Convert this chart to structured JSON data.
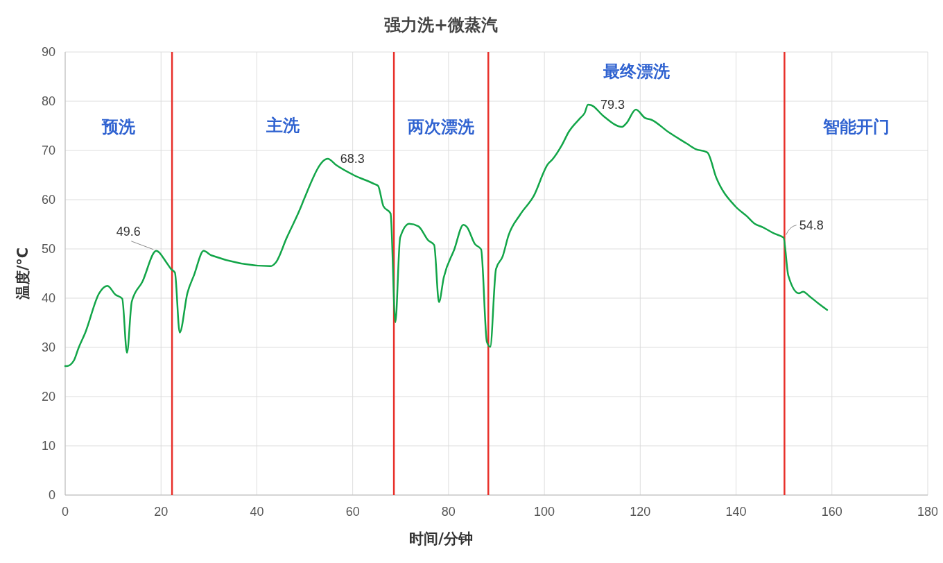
{
  "chart_data": {
    "type": "line",
    "title": "强力洗+微蒸汽",
    "xlabel": "时间/分钟",
    "ylabel": "温度/°C",
    "xlim": [
      0,
      180
    ],
    "xticks": [
      0,
      20,
      40,
      60,
      80,
      100,
      120,
      140,
      160,
      180
    ],
    "ylim": [
      0,
      90
    ],
    "yticks": [
      0,
      10,
      20,
      30,
      40,
      50,
      60,
      70,
      80,
      90
    ],
    "grid": true,
    "marker": "none",
    "line_style": "solid",
    "series": [
      {
        "color": "#12a548",
        "x": [
          0,
          0.4,
          1.8,
          2.8,
          4.2,
          7.1,
          8.8,
          10.5,
          11.9,
          12.9,
          13.9,
          16.1,
          19,
          21.1,
          22.1,
          22.9,
          23.9,
          25.5,
          26.9,
          28.9,
          30.5,
          42.8,
          44,
          46.2,
          49.1,
          49.8,
          54.8,
          56.6,
          60.2,
          64.5,
          65.3,
          66.4,
          67.9,
          68.9,
          69.9,
          71.8,
          73.7,
          75.8,
          77,
          78,
          79,
          81.2,
          83.1,
          83.8,
          85.5,
          86.8,
          88,
          88.7,
          89.9,
          91.3,
          92.5,
          94.9,
          97.8,
          100.7,
          101.7,
          103.6,
          105.1,
          107.5,
          108.4,
          109.1,
          109.8,
          112.3,
          116.2,
          117.1,
          119.1,
          121,
          122.4,
          125.8,
          129.7,
          131.5,
          134,
          135.9,
          139.8,
          142.3,
          143.9,
          145.6,
          148,
          149.9,
          150.9,
          153.1,
          154,
          155.3,
          157.2,
          159
        ],
        "values": [
          26.2,
          26.2,
          27.3,
          29.9,
          33,
          41,
          42.5,
          40.7,
          39.9,
          28.9,
          39.3,
          43.3,
          49.6,
          47.3,
          45.9,
          45.2,
          33,
          41,
          44.7,
          49.6,
          48.7,
          46.5,
          47.3,
          52.2,
          58.3,
          60,
          68.3,
          67,
          65,
          63.2,
          62.8,
          58.7,
          57.2,
          35.1,
          52.3,
          55.1,
          54.6,
          51.7,
          50.8,
          39.2,
          44.2,
          49.9,
          54.9,
          54.5,
          51,
          49.9,
          31.1,
          30.1,
          45.9,
          48.5,
          52.7,
          56.9,
          60.8,
          67.2,
          68.2,
          71,
          73.8,
          76.6,
          77.6,
          79.3,
          79.2,
          77,
          74.8,
          75.5,
          78.3,
          76.6,
          76.2,
          73.8,
          71.4,
          70.3,
          69.6,
          64.4,
          58.7,
          56.6,
          55.1,
          54.4,
          53.1,
          52.3,
          44.6,
          41,
          41.3,
          40.4,
          38.9,
          37.6
        ],
        "value_labels": [
          null,
          null,
          null,
          null,
          null,
          null,
          null,
          null,
          null,
          null,
          null,
          null,
          "49.6",
          null,
          null,
          null,
          null,
          null,
          null,
          null,
          null,
          null,
          null,
          null,
          null,
          null,
          "68.3",
          null,
          null,
          null,
          null,
          null,
          null,
          null,
          null,
          null,
          null,
          null,
          null,
          null,
          null,
          null,
          null,
          null,
          null,
          null,
          null,
          null,
          null,
          null,
          null,
          null,
          null,
          null,
          null,
          null,
          null,
          null,
          null,
          "79.3",
          null,
          null,
          null,
          null,
          null,
          null,
          null,
          null,
          null,
          null,
          null,
          null,
          null,
          null,
          null,
          null,
          null,
          null,
          null,
          null,
          null,
          null,
          null,
          null
        ]
      }
    ],
    "ref_lines": [
      {
        "axis": "x",
        "value": 22.3,
        "color": "#e8302a"
      },
      {
        "axis": "x",
        "value": 68.6,
        "color": "#e8302a"
      },
      {
        "axis": "x",
        "value": 88.3,
        "color": "#e8302a"
      },
      {
        "axis": "x",
        "value": 150.1,
        "color": "#e8302a"
      }
    ],
    "annotations": [
      "预洗",
      "主洗",
      "两次漂洗",
      "最终漂洗",
      "智能开门",
      {
        "text": "54.8",
        "x": 150,
        "y": 52.3
      }
    ]
  }
}
